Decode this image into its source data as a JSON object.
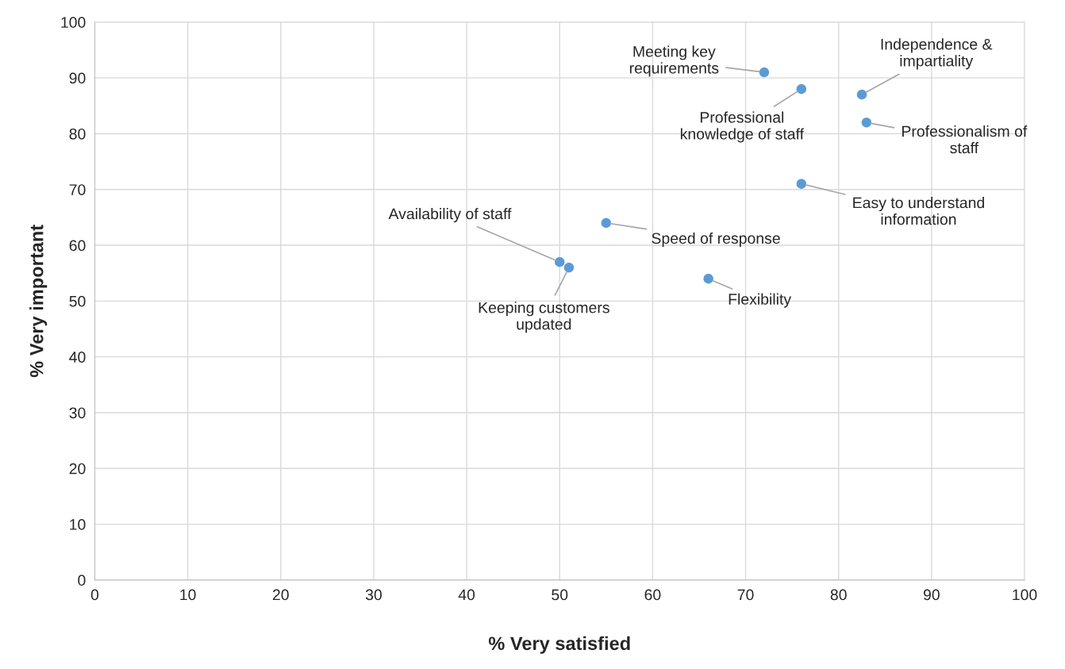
{
  "chart_data": {
    "type": "scatter",
    "xlabel": "% Very satisfied",
    "ylabel": "% Very important",
    "x": [
      72,
      76,
      82.5,
      83,
      76,
      55,
      50,
      51,
      66
    ],
    "values": [
      91,
      88,
      87,
      82,
      71,
      64,
      57,
      56,
      54
    ],
    "color": "#5b9bd5",
    "marker": "circle",
    "xlim": [
      0,
      100
    ],
    "xticks": [
      0,
      10,
      20,
      30,
      40,
      50,
      60,
      70,
      80,
      90,
      100
    ],
    "ylim": [
      0,
      100
    ],
    "yticks": [
      0,
      10,
      20,
      30,
      40,
      50,
      60,
      70,
      80,
      90,
      100
    ],
    "grid": true,
    "legend": false,
    "annotations": [
      {
        "text": "Meeting key\nrequirements",
        "x": 72,
        "y": 91
      },
      {
        "text": "Professional\nknowledge of staff",
        "x": 76,
        "y": 88
      },
      {
        "text": "Independence &\nimpartiality",
        "x": 82.5,
        "y": 87
      },
      {
        "text": "Professionalism of\nstaff",
        "x": 83,
        "y": 82
      },
      {
        "text": "Easy to understand\ninformation",
        "x": 76,
        "y": 71
      },
      {
        "text": "Speed of response",
        "x": 55,
        "y": 64
      },
      {
        "text": "Availability of staff",
        "x": 50,
        "y": 57
      },
      {
        "text": "Keeping customers\nupdated",
        "x": 51,
        "y": 56
      },
      {
        "text": "Flexibility",
        "x": 66,
        "y": 54
      }
    ]
  }
}
